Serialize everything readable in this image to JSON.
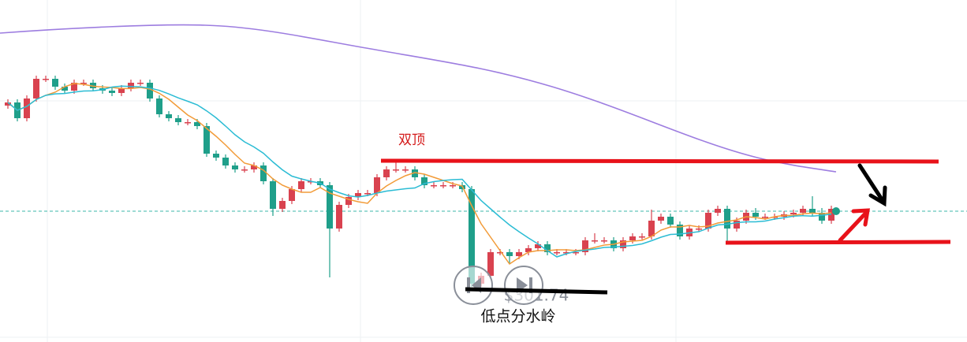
{
  "chart_data": {
    "type": "candlestick",
    "annotations": {
      "pattern": "双顶",
      "support": "低点分水岭",
      "price": "$301.74"
    },
    "ylim": [
      0,
      434
    ],
    "up_color": "#d9424f",
    "down_color": "#1f9f8a",
    "open": [
      300,
      304,
      284,
      309,
      334,
      334,
      324,
      319,
      329,
      329,
      322,
      319,
      316,
      322,
      329,
      329,
      309,
      289,
      284,
      279,
      279,
      274,
      239,
      234,
      224,
      219,
      219,
      224,
      204,
      169,
      179,
      194,
      204,
      204,
      199,
      144,
      174,
      184,
      189,
      189,
      209,
      219,
      219,
      219,
      209,
      199,
      199,
      199,
      199,
      194,
      74,
      84,
      114,
      114,
      109,
      114,
      119,
      124,
      114,
      114,
      114,
      114,
      129,
      129,
      129,
      119,
      129,
      134,
      134,
      154,
      159,
      149,
      134,
      144,
      144,
      164,
      169,
      144,
      154,
      164,
      159,
      159,
      159,
      162,
      164,
      169,
      164,
      154
    ],
    "close": [
      304,
      284,
      309,
      334,
      334,
      324,
      319,
      329,
      329,
      322,
      319,
      316,
      322,
      329,
      329,
      309,
      289,
      284,
      279,
      279,
      274,
      239,
      234,
      224,
      219,
      219,
      224,
      204,
      169,
      179,
      194,
      204,
      204,
      199,
      144,
      174,
      184,
      189,
      189,
      209,
      219,
      219,
      219,
      209,
      199,
      199,
      199,
      199,
      194,
      74,
      84,
      114,
      114,
      109,
      114,
      119,
      124,
      114,
      114,
      114,
      114,
      129,
      129,
      129,
      119,
      129,
      134,
      134,
      154,
      159,
      149,
      134,
      144,
      144,
      164,
      169,
      144,
      154,
      164,
      159,
      159,
      159,
      162,
      164,
      169,
      164,
      154,
      169
    ],
    "high": [
      308,
      308,
      313,
      338,
      338,
      338,
      328,
      333,
      333,
      333,
      326,
      323,
      326,
      333,
      333,
      333,
      313,
      293,
      288,
      283,
      283,
      278,
      243,
      238,
      228,
      223,
      228,
      228,
      208,
      183,
      198,
      208,
      208,
      208,
      203,
      178,
      188,
      193,
      193,
      213,
      223,
      228,
      223,
      223,
      213,
      203,
      203,
      203,
      203,
      198,
      88,
      118,
      118,
      118,
      118,
      123,
      128,
      128,
      118,
      118,
      118,
      133,
      138,
      133,
      133,
      133,
      138,
      138,
      168,
      163,
      163,
      153,
      148,
      148,
      168,
      173,
      173,
      158,
      168,
      170,
      163,
      163,
      166,
      168,
      173,
      185,
      170,
      173
    ],
    "low": [
      296,
      280,
      280,
      305,
      330,
      320,
      315,
      315,
      325,
      318,
      315,
      312,
      312,
      318,
      325,
      305,
      285,
      280,
      275,
      275,
      270,
      235,
      230,
      220,
      215,
      215,
      215,
      200,
      160,
      165,
      175,
      190,
      200,
      195,
      82,
      140,
      170,
      180,
      185,
      185,
      205,
      215,
      215,
      205,
      195,
      195,
      195,
      195,
      190,
      70,
      70,
      80,
      110,
      100,
      105,
      110,
      115,
      110,
      110,
      110,
      110,
      110,
      125,
      125,
      115,
      115,
      125,
      130,
      130,
      150,
      145,
      130,
      130,
      140,
      140,
      160,
      125,
      140,
      150,
      155,
      155,
      155,
      155,
      158,
      160,
      160,
      150,
      150
    ]
  }
}
